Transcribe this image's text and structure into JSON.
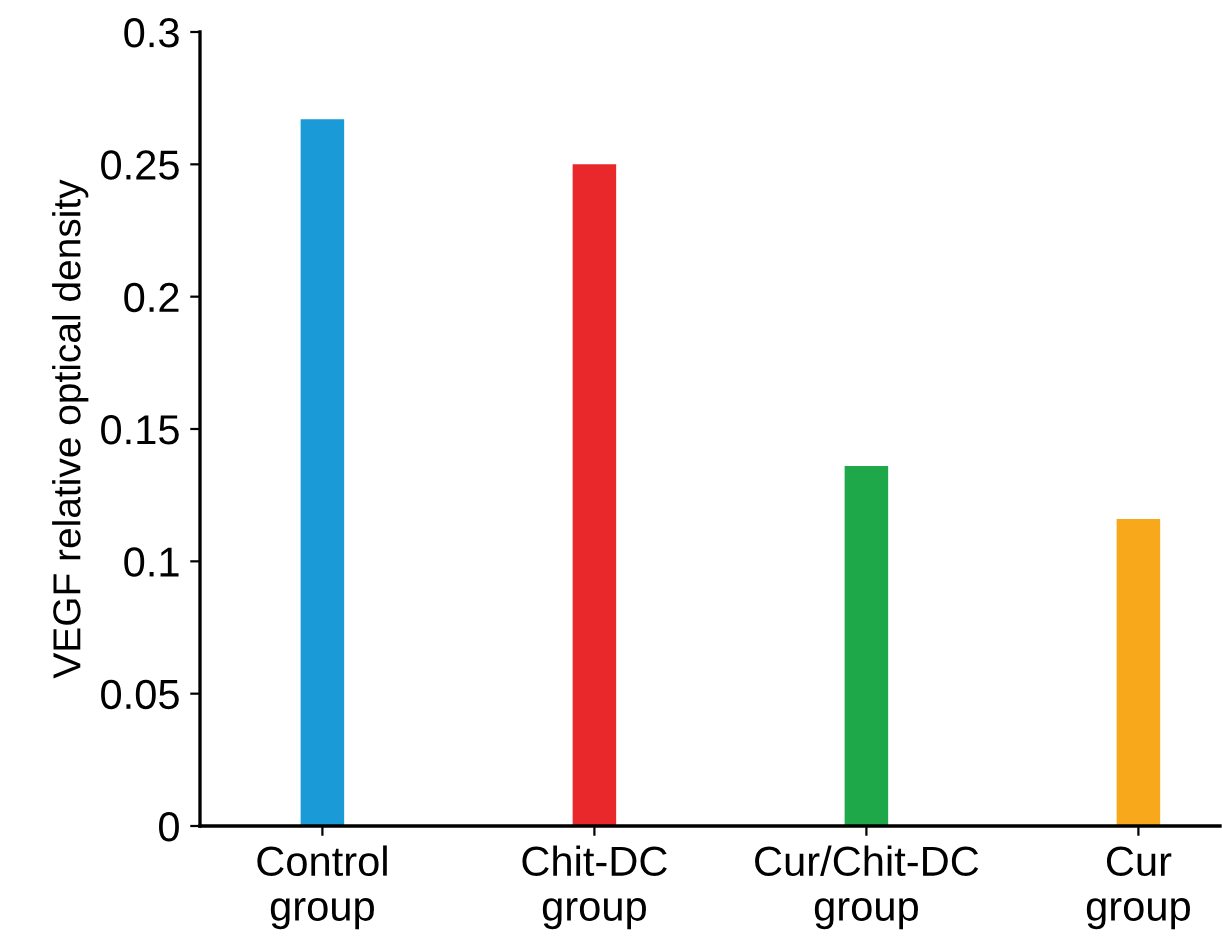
{
  "chart_data": {
    "type": "bar",
    "ylabel": "VEGF relative optical density",
    "categories": [
      "Control\ngroup",
      "Chit-DC\ngroup",
      "Cur/Chit-DC\ngroup",
      "Cur\ngroup"
    ],
    "values": [
      0.267,
      0.25,
      0.136,
      0.116
    ],
    "colors": [
      "#1a9ad6",
      "#e8282a",
      "#1fa84a",
      "#f7a81b"
    ],
    "ylim": [
      0,
      0.3
    ],
    "yticks": [
      0,
      0.05,
      0.1,
      0.15,
      0.2,
      0.25,
      0.3
    ],
    "grid": false,
    "legend": false
  }
}
